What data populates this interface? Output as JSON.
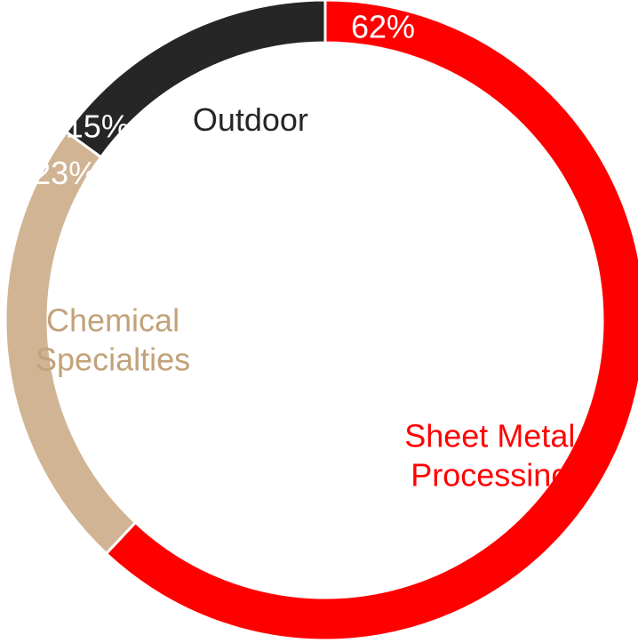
{
  "chart_data": {
    "type": "pie",
    "donut": true,
    "legend": "none",
    "grid": false,
    "slices": [
      {
        "label_lines": [
          "Sheet Metal",
          "Processing"
        ],
        "value": 62,
        "value_label": "62%",
        "color": "#FF0000",
        "label_color": "#FF0000",
        "value_label_color": "#FFFFFF"
      },
      {
        "label_lines": [
          "Chemical",
          "Specialties"
        ],
        "value": 23,
        "value_label": "23%",
        "color": "#D1B494",
        "label_color": "#C2A27A",
        "value_label_color": "#FFFFFF"
      },
      {
        "label_lines": [
          "Outdoor"
        ],
        "value": 15,
        "value_label": "15%",
        "color": "#262626",
        "label_color": "#262626",
        "value_label_color": "#FFFFFF"
      }
    ]
  }
}
